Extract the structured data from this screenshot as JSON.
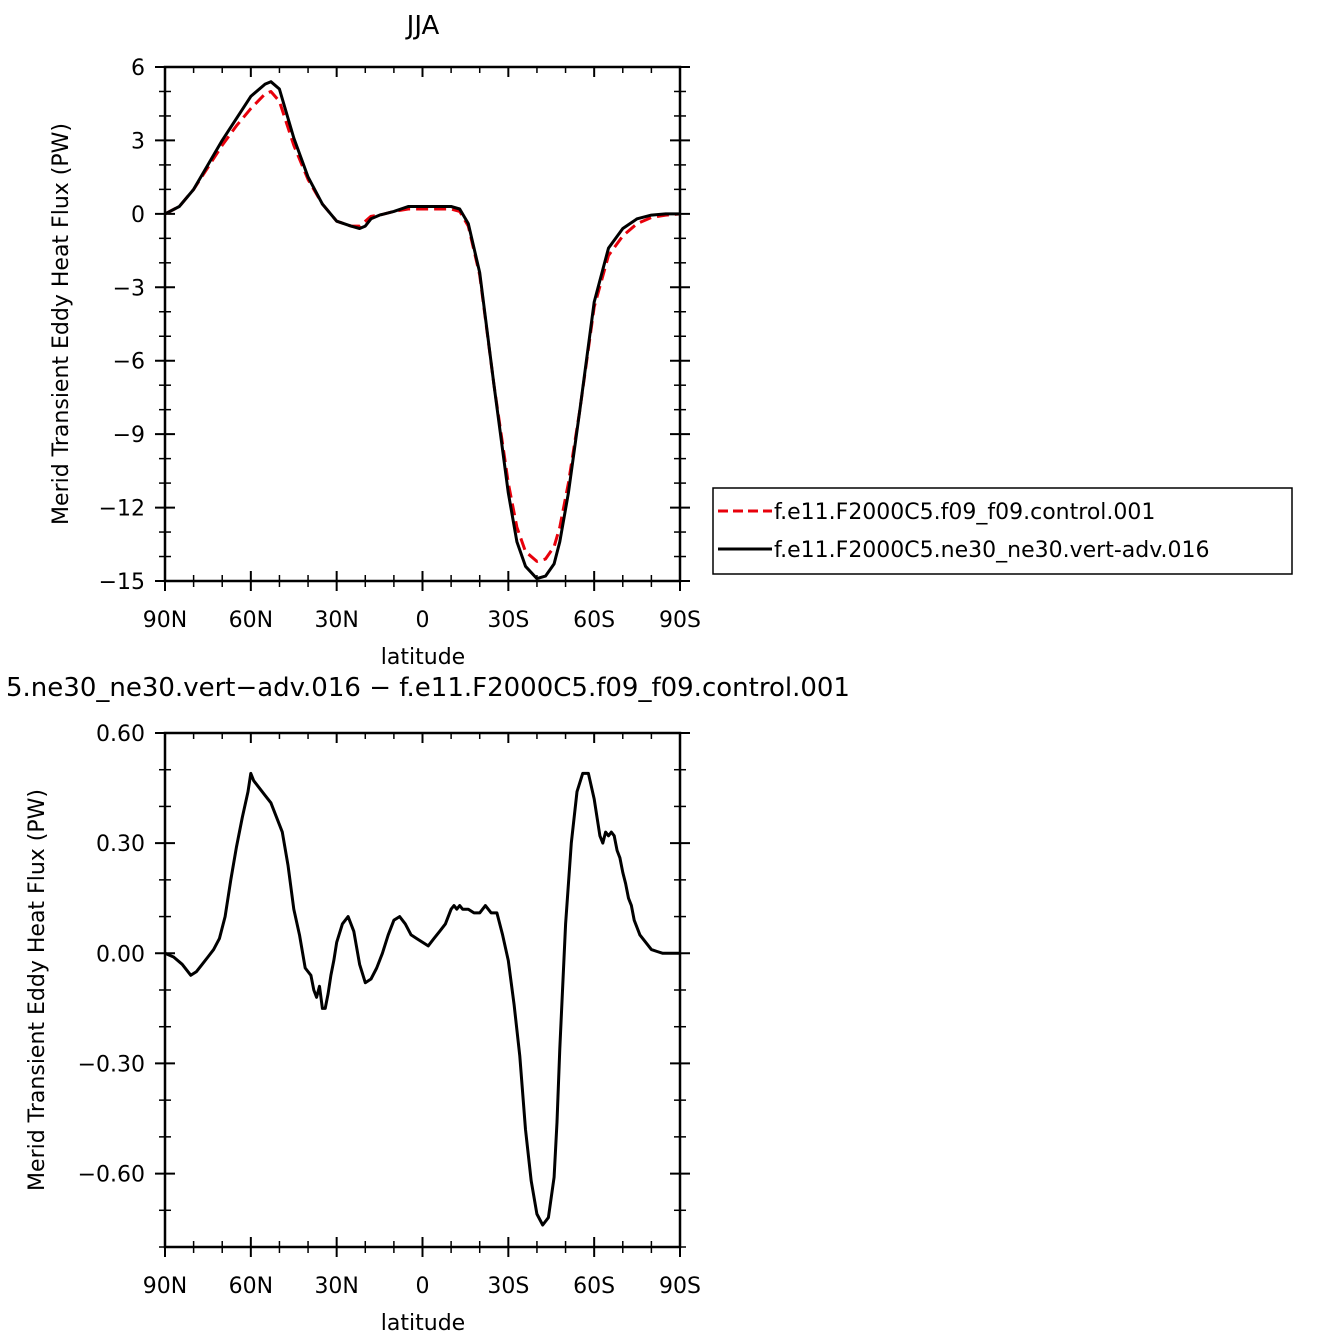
{
  "chart_data": [
    {
      "type": "line",
      "title": "JJA",
      "xlabel": "latitude",
      "ylabel": "Merid Transient Eddy Heat Flux (PW)",
      "x_ticks": [
        90,
        60,
        30,
        0,
        -30,
        -60,
        -90
      ],
      "x_tick_labels": [
        "90N",
        "60N",
        "30N",
        "0",
        "30S",
        "60S",
        "90S"
      ],
      "xlim": [
        90,
        -90
      ],
      "ylim": [
        -15,
        6
      ],
      "y_ticks": [
        6,
        3,
        0,
        -3,
        -6,
        -9,
        -12,
        -15
      ],
      "y_tick_labels": [
        "6",
        "3",
        "0",
        "−3",
        "−6",
        "−9",
        "−12",
        "−15"
      ],
      "legend_position": "right",
      "series": [
        {
          "name": "f.e11.F2000C5.f09_f09.control.001",
          "color": "#e8000b",
          "dash": "dashed",
          "x": [
            90,
            85,
            80,
            75,
            70,
            65,
            60,
            55,
            53,
            50,
            45,
            40,
            35,
            30,
            25,
            22,
            20,
            18,
            15,
            10,
            5,
            0,
            -5,
            -10,
            -13,
            -16,
            -20,
            -25,
            -30,
            -33,
            -36,
            -40,
            -43,
            -46,
            -48,
            -51,
            -55,
            -60,
            -65,
            -70,
            -75,
            -80,
            -85,
            -90
          ],
          "y": [
            0,
            0.3,
            1.0,
            1.9,
            2.8,
            3.6,
            4.3,
            4.9,
            5.0,
            4.6,
            2.8,
            1.4,
            0.4,
            -0.3,
            -0.5,
            -0.5,
            -0.3,
            -0.1,
            -0.05,
            0.1,
            0.2,
            0.2,
            0.2,
            0.2,
            0.1,
            -0.5,
            -2.5,
            -7.0,
            -11.0,
            -12.8,
            -13.8,
            -14.2,
            -14.1,
            -13.6,
            -12.8,
            -11.0,
            -8.0,
            -3.8,
            -1.7,
            -0.9,
            -0.4,
            -0.15,
            -0.05,
            0
          ]
        },
        {
          "name": "f.e11.F2000C5.ne30_ne30.vert-adv.016",
          "color": "#000000",
          "dash": "solid",
          "x": [
            90,
            85,
            80,
            75,
            70,
            65,
            60,
            55,
            53,
            50,
            45,
            40,
            35,
            30,
            25,
            22,
            20,
            18,
            15,
            10,
            5,
            0,
            -5,
            -10,
            -13,
            -16,
            -20,
            -25,
            -30,
            -33,
            -36,
            -40,
            -43,
            -46,
            -48,
            -51,
            -55,
            -60,
            -65,
            -70,
            -75,
            -80,
            -85,
            -90
          ],
          "y": [
            0,
            0.3,
            1.0,
            2.0,
            3.0,
            3.9,
            4.8,
            5.3,
            5.4,
            5.1,
            3.1,
            1.5,
            0.4,
            -0.3,
            -0.5,
            -0.6,
            -0.5,
            -0.2,
            -0.05,
            0.1,
            0.3,
            0.3,
            0.3,
            0.3,
            0.2,
            -0.4,
            -2.4,
            -7.0,
            -11.4,
            -13.4,
            -14.4,
            -14.9,
            -14.8,
            -14.3,
            -13.4,
            -11.4,
            -8.0,
            -3.6,
            -1.4,
            -0.6,
            -0.2,
            -0.05,
            0,
            0
          ]
        }
      ]
    },
    {
      "type": "line",
      "title": "5.ne30_ne30.vert−adv.016 − f.e11.F2000C5.f09_f09.control.001",
      "xlabel": "latitude",
      "ylabel": "Merid Transient Eddy Heat Flux (PW)",
      "x_ticks": [
        90,
        60,
        30,
        0,
        -30,
        -60,
        -90
      ],
      "x_tick_labels": [
        "90N",
        "60N",
        "30N",
        "0",
        "30S",
        "60S",
        "90S"
      ],
      "xlim": [
        90,
        -90
      ],
      "ylim": [
        -0.8,
        0.6
      ],
      "y_ticks": [
        0.6,
        0.3,
        0,
        -0.3,
        -0.6
      ],
      "y_tick_labels": [
        "0.60",
        "0.30",
        "0.00",
        "−0.30",
        "−0.60"
      ],
      "series": [
        {
          "color": "#000000",
          "dash": "solid",
          "x": [
            90,
            87,
            84,
            81,
            79,
            77,
            75,
            73,
            71,
            69,
            67,
            65,
            63,
            61,
            60,
            59,
            57,
            55,
            53,
            51,
            49,
            47,
            45,
            43,
            41,
            39,
            38,
            37,
            36,
            35,
            34,
            33,
            32,
            31,
            30,
            28,
            26,
            24,
            22,
            20,
            18,
            16,
            14,
            12,
            10,
            8,
            6,
            4,
            2,
            0,
            -2,
            -4,
            -6,
            -8,
            -10,
            -11,
            -12,
            -13,
            -14,
            -16,
            -18,
            -20,
            -22,
            -24,
            -26,
            -28,
            -30,
            -32,
            -34,
            -36,
            -38,
            -40,
            -42,
            -44,
            -46,
            -47,
            -48,
            -50,
            -52,
            -54,
            -56,
            -58,
            -60,
            -62,
            -63,
            -64,
            -65,
            -66,
            -67,
            -68,
            -69,
            -70,
            -71,
            -72,
            -73,
            -74,
            -76,
            -78,
            -80,
            -82,
            -84,
            -86,
            -88,
            -90
          ],
          "y": [
            0,
            -0.01,
            -0.03,
            -0.06,
            -0.05,
            -0.03,
            -0.01,
            0.01,
            0.04,
            0.1,
            0.2,
            0.29,
            0.37,
            0.44,
            0.49,
            0.47,
            0.45,
            0.43,
            0.41,
            0.37,
            0.33,
            0.24,
            0.12,
            0.05,
            -0.04,
            -0.06,
            -0.1,
            -0.12,
            -0.09,
            -0.15,
            -0.15,
            -0.11,
            -0.06,
            -0.02,
            0.03,
            0.08,
            0.1,
            0.06,
            -0.03,
            -0.08,
            -0.07,
            -0.04,
            0,
            0.05,
            0.09,
            0.1,
            0.08,
            0.05,
            0.04,
            0.03,
            0.02,
            0.04,
            0.06,
            0.08,
            0.12,
            0.13,
            0.12,
            0.13,
            0.12,
            0.12,
            0.11,
            0.11,
            0.13,
            0.11,
            0.11,
            0.05,
            -0.02,
            -0.14,
            -0.28,
            -0.48,
            -0.62,
            -0.71,
            -0.74,
            -0.72,
            -0.61,
            -0.46,
            -0.26,
            0.08,
            0.3,
            0.44,
            0.49,
            0.49,
            0.42,
            0.32,
            0.3,
            0.33,
            0.32,
            0.33,
            0.32,
            0.28,
            0.26,
            0.22,
            0.19,
            0.15,
            0.13,
            0.09,
            0.05,
            0.03,
            0.01,
            0.005,
            0,
            0,
            0,
            0
          ]
        }
      ]
    }
  ]
}
